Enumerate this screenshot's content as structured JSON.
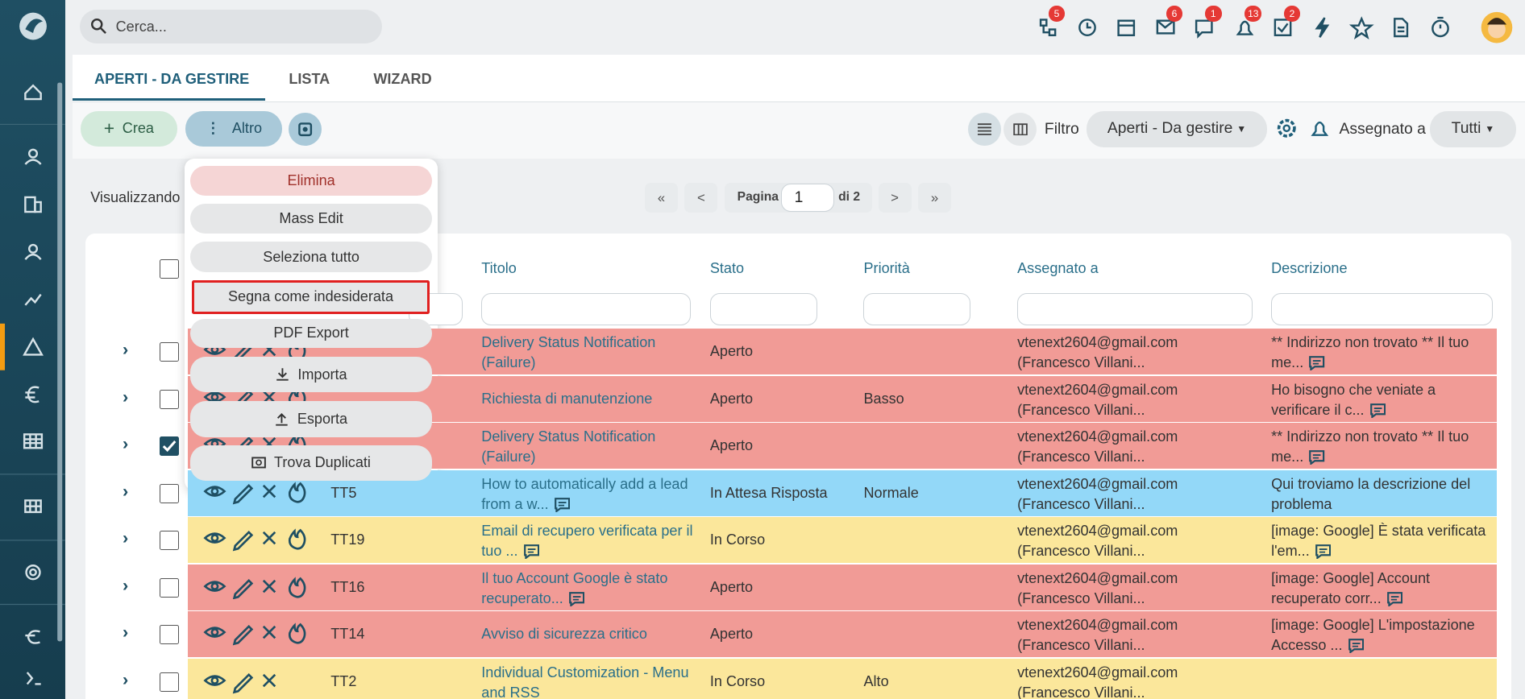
{
  "header": {
    "search_placeholder": "Cerca...",
    "badges": [
      5,
      6,
      1,
      13,
      2
    ]
  },
  "tabs": [
    "APERTI - DA GESTIRE",
    "LISTA",
    "WIZARD"
  ],
  "toolbar": {
    "create": "Crea",
    "more": "Altro",
    "filter_label": "Filtro",
    "filter_value": "Aperti - Da gestire",
    "assigned_label": "Assegnato a",
    "assigned_value": "Tutti"
  },
  "pager": {
    "showing": "Visualizzando",
    "first": "«",
    "prev": "<",
    "page_label": "Pagina",
    "page": 1,
    "of": "di 2",
    "next": ">",
    "last": "»"
  },
  "menu": [
    "Elimina",
    "Mass Edit",
    "Seleziona tutto",
    "Segna come indesiderata",
    "PDF Export",
    "Importa",
    "Esporta",
    "Trova Duplicati"
  ],
  "table": {
    "columns": [
      "Titolo",
      "Stato",
      "Priorità",
      "Assegnato a",
      "Descrizione"
    ],
    "rows": [
      {
        "color": "#f19b96",
        "title": "Delivery Status Notification (Failure)",
        "status": "Aperto",
        "assignee": "vtenext2604@gmail.com (Francesco Villani...",
        "description": "** Indirizzo non trovato ** Il tuo me..."
      },
      {
        "color": "#f19b96",
        "title": "Richiesta di manutenzione",
        "status": "Aperto",
        "priority": "Basso",
        "assignee": "vtenext2604@gmail.com (Francesco Villani...",
        "description": "Ho bisogno che veniate a verificare il c..."
      },
      {
        "color": "#f19b96",
        "checked": true,
        "title": "Delivery Status Notification (Failure)",
        "status": "Aperto",
        "assignee": "vtenext2604@gmail.com (Francesco Villani...",
        "description": "** Indirizzo non trovato ** Il tuo me..."
      },
      {
        "color": "#93d8f8",
        "number": "TT5",
        "title": "How to automatically add a lead from a w...",
        "status": "In Attesa Risposta",
        "priority": "Normale",
        "assignee": "vtenext2604@gmail.com (Francesco Villani...",
        "description": "Qui troviamo la descrizione del problema"
      },
      {
        "color": "#fbe79b",
        "number": "TT19",
        "title": "Email di recupero verificata per il tuo ...",
        "status": "In Corso",
        "assignee": "vtenext2604@gmail.com (Francesco Villani...",
        "description": "[image: Google] È stata verificata l'em..."
      },
      {
        "color": "#f19b96",
        "number": "TT16",
        "title": "Il tuo Account Google è stato recuperato...",
        "status": "Aperto",
        "assignee": "vtenext2604@gmail.com (Francesco Villani...",
        "description": "[image: Google] Account recuperato corr..."
      },
      {
        "color": "#f19b96",
        "number": "TT14",
        "title": "Avviso di sicurezza critico",
        "status": "Aperto",
        "assignee": "vtenext2604@gmail.com (Francesco Villani...",
        "description": "[image: Google] L'impostazione Accesso ..."
      },
      {
        "color": "#fbe79b",
        "number": "TT2",
        "title": "Individual Customization - Menu and RSS",
        "status": "In Corso",
        "priority": "Alto",
        "assignee": "vtenext2604@gmail.com (Francesco Villani..."
      }
    ]
  }
}
